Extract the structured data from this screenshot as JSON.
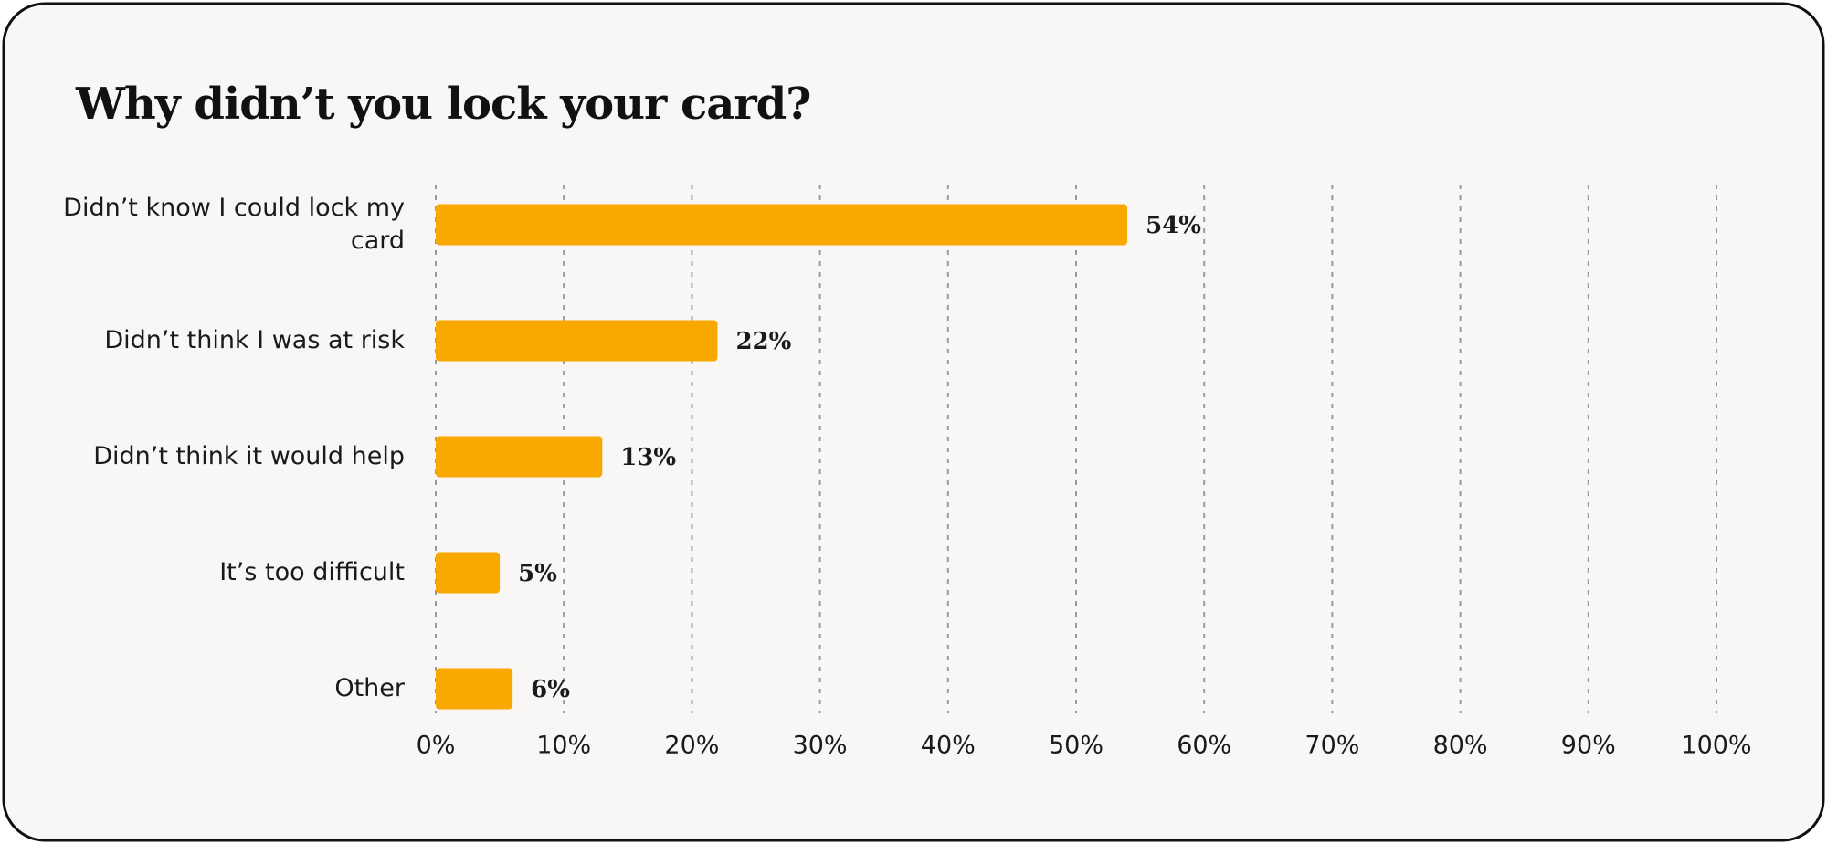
{
  "chart_data": {
    "type": "bar",
    "orientation": "horizontal",
    "title": "Why didn’t you lock your card?",
    "categories": [
      "Didn’t know I could lock my card",
      "Didn’t think I was at risk",
      "Didn’t think it would help",
      "It’s too difficult",
      "Other"
    ],
    "values": [
      54,
      22,
      13,
      5,
      6
    ],
    "value_labels": [
      "54%",
      "22%",
      "13%",
      "5%",
      "6%"
    ],
    "color": "#f9a800",
    "xlim": [
      0,
      100
    ],
    "xticks": [
      {
        "value": 0,
        "label": "0%"
      },
      {
        "value": 10,
        "label": "10%"
      },
      {
        "value": 20,
        "label": "20%"
      },
      {
        "value": 30,
        "label": "30%"
      },
      {
        "value": 40,
        "label": "40%"
      },
      {
        "value": 50,
        "label": "50%"
      },
      {
        "value": 60,
        "label": "60%"
      },
      {
        "value": 70,
        "label": "70%"
      },
      {
        "value": 80,
        "label": "80%"
      },
      {
        "value": 90,
        "label": "90%"
      },
      {
        "value": 100,
        "label": "100%"
      }
    ],
    "grid": true
  }
}
